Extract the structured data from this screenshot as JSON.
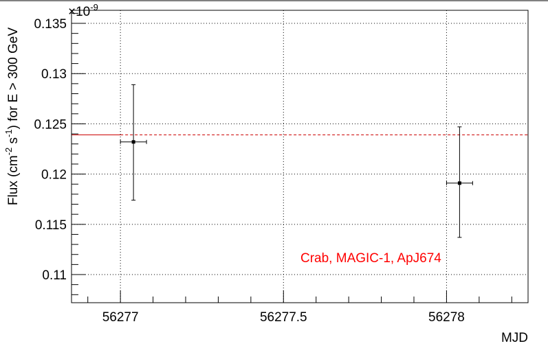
{
  "chart_data": {
    "type": "scatter",
    "xlabel": "MJD",
    "ylabel": "Flux (cm^-2 s^-1) for E > 300 GeV",
    "ylabel_parts": {
      "pre": "Flux (cm",
      "sup1": "-2",
      "mid": " s",
      "sup2": "-1",
      "post": ") for E > 300 GeV"
    },
    "y_exponent_label": "×10",
    "y_exponent_power": "-9",
    "y_scale_factor": 1e-09,
    "xlim": [
      56276.85,
      56278.25
    ],
    "ylim": [
      0.1072,
      0.1363
    ],
    "x_ticks": [
      56277,
      56277.5,
      56278
    ],
    "x_tick_labels": [
      "56277",
      "56277.5",
      "56278"
    ],
    "y_ticks": [
      0.11,
      0.115,
      0.12,
      0.125,
      0.13,
      0.135
    ],
    "y_tick_labels": [
      "0.11",
      "0.115",
      "0.12",
      "0.125",
      "0.13",
      "0.135"
    ],
    "grid": true,
    "points": [
      {
        "x": 56277.04,
        "y": 0.1232,
        "xerr": 0.04,
        "yerr_low": 0.0058,
        "yerr_high": 0.0057
      },
      {
        "x": 56278.04,
        "y": 0.1191,
        "xerr": 0.04,
        "yerr_low": 0.0054,
        "yerr_high": 0.0056
      }
    ],
    "reference": {
      "label": "Crab, MAGIC-1, ApJ674",
      "value": 0.1239,
      "solid_until_x": 56277.0,
      "color": "#cc0000"
    },
    "annotation_color": "#ff0000"
  }
}
